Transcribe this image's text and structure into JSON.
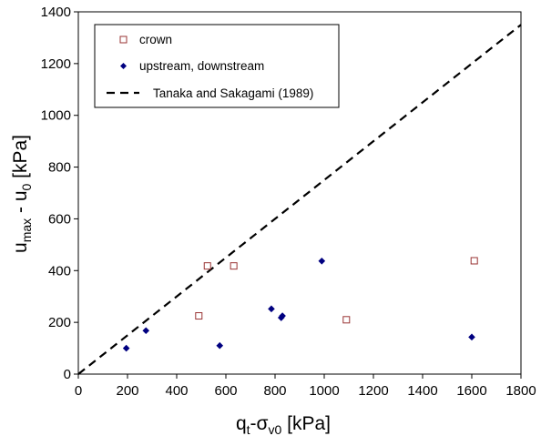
{
  "chart_data": {
    "type": "scatter",
    "xlabel": {
      "main": "q",
      "sub1": "t",
      "mid": "-σ",
      "sub2": "v0",
      "unit": " [kPa]"
    },
    "ylabel": {
      "main": "u",
      "sub1": "max",
      "mid": " - u",
      "sub2": "0",
      "unit": " [kPa]"
    },
    "xlim": [
      0,
      1800
    ],
    "ylim": [
      0,
      1400
    ],
    "xticks": [
      0,
      200,
      400,
      600,
      800,
      1000,
      1200,
      1400,
      1600,
      1800
    ],
    "yticks": [
      0,
      200,
      400,
      600,
      800,
      1000,
      1200,
      1400
    ],
    "grid": false,
    "legend_position": "top-left",
    "series": [
      {
        "name": "crown",
        "marker": "open-square",
        "color": "#993333",
        "points": [
          [
            490,
            225
          ],
          [
            525,
            418
          ],
          [
            632,
            418
          ],
          [
            1090,
            210
          ],
          [
            1610,
            438
          ]
        ]
      },
      {
        "name": "upstream, downstream",
        "marker": "filled-diamond",
        "color": "#000080",
        "points": [
          [
            195,
            100
          ],
          [
            275,
            168
          ],
          [
            575,
            110
          ],
          [
            785,
            252
          ],
          [
            825,
            218
          ],
          [
            830,
            225
          ],
          [
            990,
            437
          ],
          [
            1600,
            143
          ]
        ]
      },
      {
        "name": "Tanaka and Sakagami (1989)",
        "marker": "dashed-line",
        "color": "#000000",
        "line": [
          [
            0,
            0
          ],
          [
            1800,
            1350
          ]
        ]
      }
    ]
  }
}
